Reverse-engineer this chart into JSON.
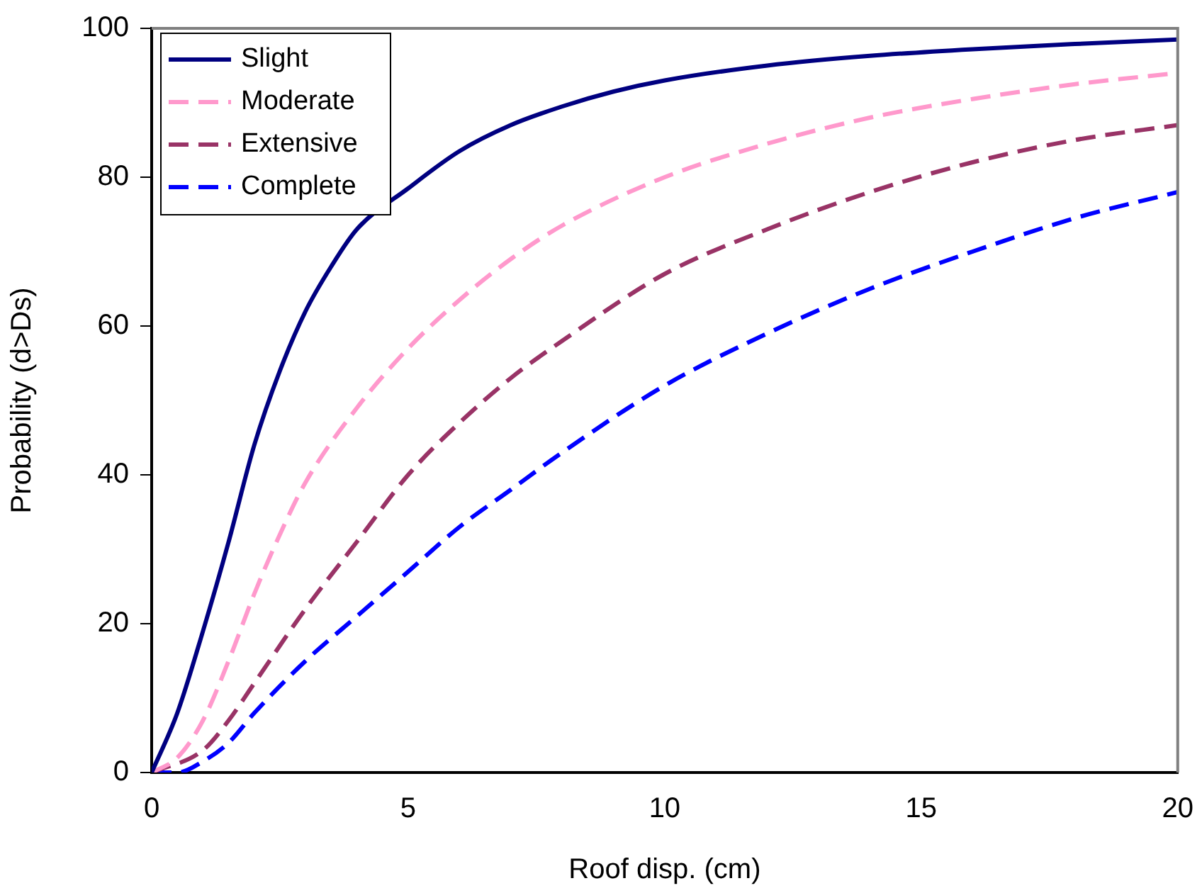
{
  "chart_data": {
    "type": "line",
    "xlabel": "Roof disp. (cm)",
    "ylabel": "Probability (d>Ds)",
    "xlim": [
      0,
      20
    ],
    "xticks": [
      0,
      5,
      10,
      15,
      20
    ],
    "ylim": [
      0,
      100
    ],
    "yticks": [
      0,
      20,
      40,
      60,
      80,
      100
    ],
    "grid": false,
    "legend": "top left",
    "marker": "none",
    "series": [
      {
        "name": "Slight",
        "color": "#000080",
        "line_style": "solid",
        "x": [
          0,
          0.5,
          1,
          1.5,
          2,
          2.5,
          3,
          3.5,
          4,
          5,
          6,
          7,
          8,
          9,
          10,
          12,
          14,
          16,
          18,
          20
        ],
        "values": [
          0,
          8,
          19,
          31,
          44,
          54,
          62,
          68,
          73,
          78.5,
          83.5,
          87,
          89.5,
          91.5,
          93,
          95,
          96.3,
          97.2,
          97.9,
          98.5
        ]
      },
      {
        "name": "Moderate",
        "color": "#ff99cc",
        "line_style": "dashed",
        "x": [
          0,
          0.5,
          1,
          1.5,
          2,
          2.5,
          3,
          4,
          5,
          6,
          7,
          8,
          10,
          12,
          14,
          16,
          18,
          20
        ],
        "values": [
          0,
          2,
          7,
          15,
          24,
          32,
          39,
          49,
          57,
          63.5,
          69,
          73.5,
          80,
          84.5,
          88,
          90.5,
          92.5,
          94
        ]
      },
      {
        "name": "Extensive",
        "color": "#993366",
        "line_style": "dashed",
        "x": [
          0,
          1,
          1.5,
          2,
          3,
          4,
          5,
          6,
          7,
          8,
          10,
          12,
          14,
          16,
          18,
          20
        ],
        "values": [
          0,
          3,
          7,
          12,
          22,
          31,
          40,
          47,
          53,
          58,
          67,
          73,
          78,
          82,
          85,
          87
        ]
      },
      {
        "name": "Complete",
        "color": "#0000ff",
        "line_style": "dashed",
        "x": [
          0,
          0.5,
          1,
          1.5,
          2,
          3,
          4,
          5,
          6,
          7,
          8,
          10,
          12,
          14,
          16,
          18,
          20
        ],
        "values": [
          0,
          0,
          1.5,
          4,
          8,
          15,
          21,
          27,
          33,
          38,
          43,
          52,
          59,
          65,
          70,
          74.5,
          78
        ]
      }
    ]
  }
}
